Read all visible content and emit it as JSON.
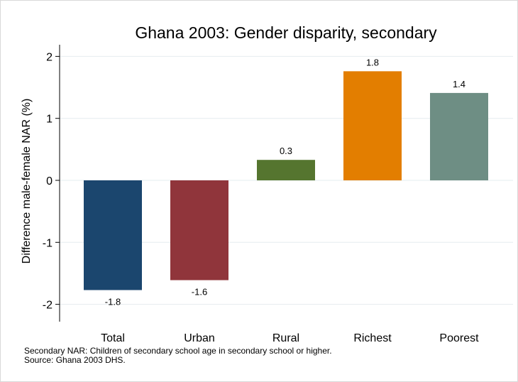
{
  "chart_data": {
    "type": "bar",
    "title": "Ghana 2003: Gender disparity, secondary",
    "ylabel": "Difference male-female NAR (%)",
    "xlabel": "",
    "categories": [
      "Total",
      "Urban",
      "Rural",
      "Richest",
      "Poorest"
    ],
    "values": [
      -1.77,
      -1.61,
      0.33,
      1.76,
      1.41
    ],
    "data_labels": [
      "-1.8",
      "-1.6",
      "0.3",
      "1.8",
      "1.4"
    ],
    "colors": [
      "#1b466e",
      "#90353b",
      "#55752f",
      "#e37e00",
      "#6e8e84"
    ],
    "ylim": [
      -2.15,
      2.15
    ],
    "yticks": [
      -2,
      -1,
      0,
      1,
      2
    ],
    "ytick_labels": [
      "-2",
      "-1",
      "0",
      "1",
      "2"
    ],
    "grid": true,
    "legend": "none"
  },
  "notes": {
    "line1": "Secondary NAR: Children of secondary school age in secondary school or higher.",
    "line2": "Source: Ghana 2003 DHS."
  }
}
